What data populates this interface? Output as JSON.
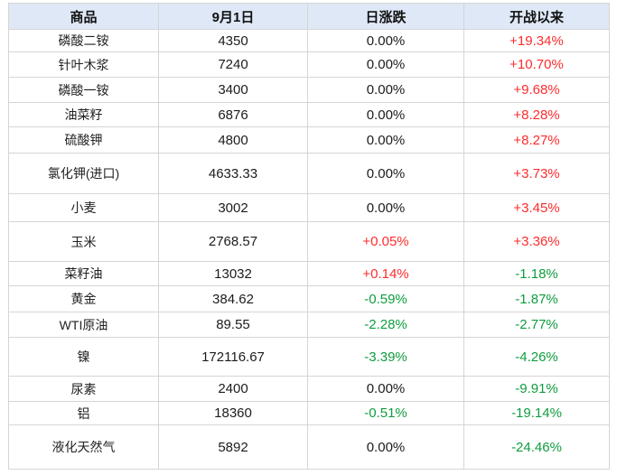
{
  "chart_data": {
    "type": "table",
    "columns": [
      "商品",
      "9月1日",
      "日涨跌",
      "开战以来"
    ],
    "rows": [
      {
        "name": "磷酸二铵",
        "price": "4350",
        "daily_change": "0.00%",
        "since_war": "+19.34%"
      },
      {
        "name": "针叶木浆",
        "price": "7240",
        "daily_change": "0.00%",
        "since_war": "+10.70%"
      },
      {
        "name": "磷酸一铵",
        "price": "3400",
        "daily_change": "0.00%",
        "since_war": "+9.68%"
      },
      {
        "name": "油菜籽",
        "price": "6876",
        "daily_change": "0.00%",
        "since_war": "+8.28%"
      },
      {
        "name": "硫酸钾",
        "price": "4800",
        "daily_change": "0.00%",
        "since_war": "+8.27%"
      },
      {
        "name": "氯化钾(进口)",
        "price": "4633.33",
        "daily_change": "0.00%",
        "since_war": "+3.73%"
      },
      {
        "name": "小麦",
        "price": "3002",
        "daily_change": "0.00%",
        "since_war": "+3.45%"
      },
      {
        "name": "玉米",
        "price": "2768.57",
        "daily_change": "+0.05%",
        "since_war": "+3.36%"
      },
      {
        "name": "菜籽油",
        "price": "13032",
        "daily_change": "+0.14%",
        "since_war": "-1.18%"
      },
      {
        "name": "黄金",
        "price": "384.62",
        "daily_change": "-0.59%",
        "since_war": "-1.87%"
      },
      {
        "name": "WTI原油",
        "price": "89.55",
        "daily_change": "-2.28%",
        "since_war": "-2.77%"
      },
      {
        "name": "镍",
        "price": "172116.67",
        "daily_change": "-3.39%",
        "since_war": "-4.26%"
      },
      {
        "name": "尿素",
        "price": "2400",
        "daily_change": "0.00%",
        "since_war": "-9.91%"
      },
      {
        "name": "铝",
        "price": "18360",
        "daily_change": "-0.51%",
        "since_war": "-19.14%"
      },
      {
        "name": "液化天然气",
        "price": "5892",
        "daily_change": "0.00%",
        "since_war": "-24.46%"
      }
    ]
  },
  "colors": {
    "header_bg": "#dfe8f6",
    "up": "#fe2c2c",
    "down": "#0f9d3f",
    "neutral": "#1c1c1c"
  }
}
